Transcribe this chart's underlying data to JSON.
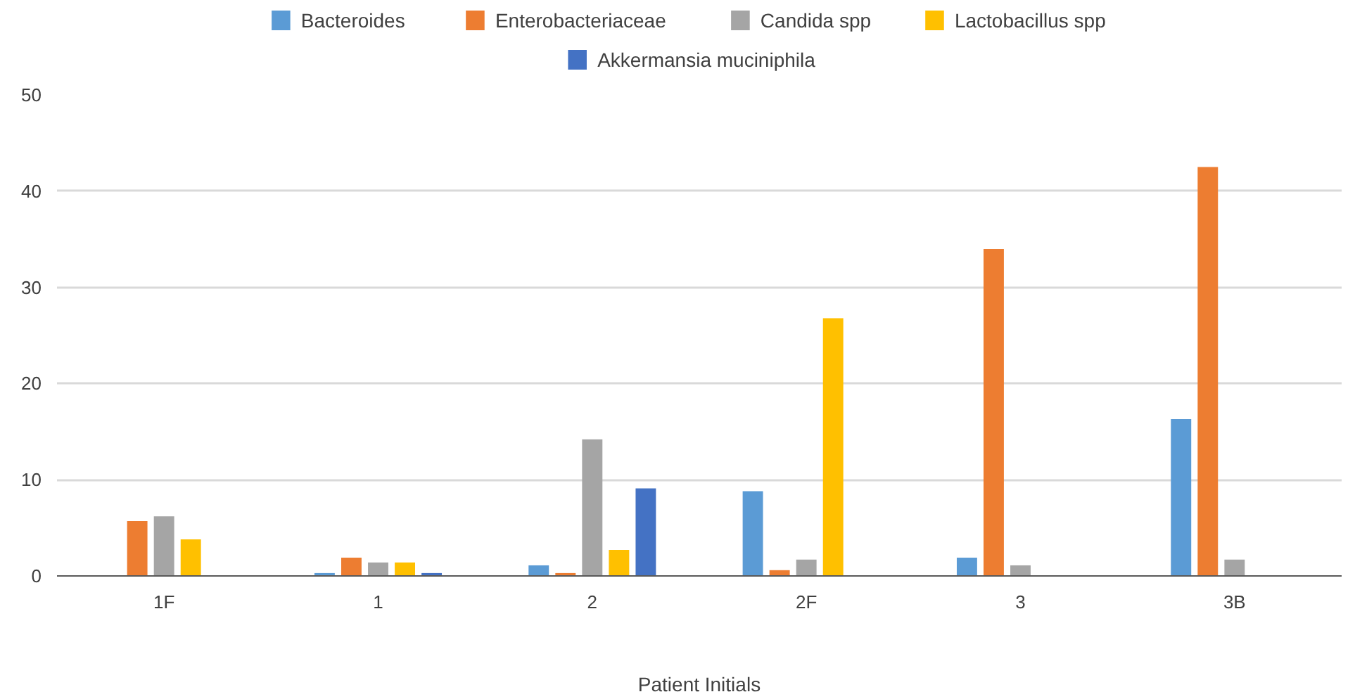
{
  "chart_data": {
    "type": "bar",
    "xlabel": "Patient Initials",
    "categories": [
      "1F",
      "1",
      "2",
      "2F",
      "3",
      "3B"
    ],
    "series": [
      {
        "name": "Bacteroides",
        "color": "#5b9bd5",
        "values": [
          0,
          0.3,
          1.1,
          8.8,
          1.9,
          16.3
        ]
      },
      {
        "name": "Enterobacteriaceae",
        "color": "#ed7d31",
        "values": [
          5.7,
          1.9,
          0.3,
          0.6,
          34,
          42.5
        ]
      },
      {
        "name": "Candida spp",
        "color": "#a5a5a5",
        "values": [
          6.2,
          1.4,
          14.2,
          1.7,
          1.1,
          1.7
        ]
      },
      {
        "name": "Lactobacillus spp",
        "color": "#ffc000",
        "values": [
          3.8,
          1.4,
          2.7,
          26.8,
          0,
          0
        ]
      },
      {
        "name": "Akkermansia muciniphila",
        "color": "#4472c4",
        "values": [
          0,
          0.3,
          9.1,
          0,
          0,
          0
        ]
      }
    ],
    "ylim": [
      0,
      50
    ],
    "yticks": [
      0,
      10,
      20,
      30,
      40,
      50
    ],
    "grid": "y",
    "legend": "top"
  }
}
